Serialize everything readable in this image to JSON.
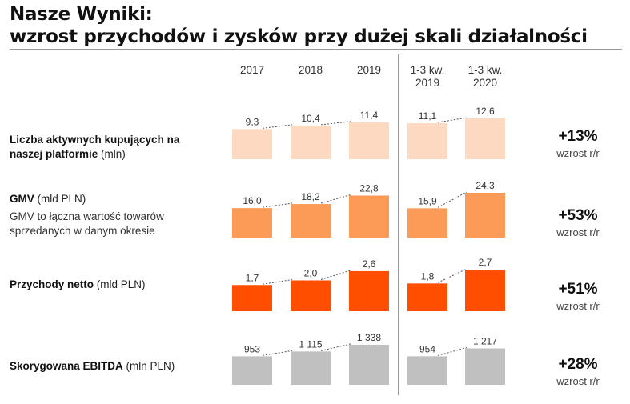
{
  "title_line1": "Nasze Wyniki:",
  "title_line2": "wzrost przychodów i zysków przy dużej skali działalności",
  "chart_data": {
    "type": "bar",
    "categories": [
      [
        "2017"
      ],
      [
        "2018"
      ],
      [
        "2019"
      ],
      [
        "1-3 kw.",
        "2019"
      ],
      [
        "1-3 kw.",
        "2020"
      ]
    ],
    "metrics": [
      {
        "name": "Liczba aktywnych kupujących na naszej platformie",
        "unit": "(mln)",
        "values": [
          9.3,
          10.4,
          11.4,
          11.1,
          12.6
        ],
        "value_labels": [
          "9,3",
          "10,4",
          "11,4",
          "11,1",
          "12,6"
        ],
        "color": "#fcd9c0",
        "growth": "+13%",
        "growth_label": "wzrost r/r"
      },
      {
        "name": "GMV",
        "unit": "(mld PLN)",
        "description": "GMV to łączna wartość towarów sprzedanych w danym okresie",
        "values": [
          16.0,
          18.2,
          22.8,
          15.9,
          24.3
        ],
        "value_labels": [
          "16,0",
          "18,2",
          "22,8",
          "15,9",
          "24,3"
        ],
        "color": "#fb9b57",
        "growth": "+53%",
        "growth_label": "wzrost r/r"
      },
      {
        "name": "Przychody netto",
        "unit": "(mld PLN)",
        "values": [
          1.7,
          2.0,
          2.6,
          1.8,
          2.7
        ],
        "value_labels": [
          "1,7",
          "2,0",
          "2,6",
          "1,8",
          "2,7"
        ],
        "color": "#ff4e00",
        "growth": "+51%",
        "growth_label": "wzrost r/r"
      },
      {
        "name": "Skorygowana EBITDA",
        "unit": "(mln PLN)",
        "values": [
          953,
          1115,
          1338,
          954,
          1217
        ],
        "value_labels": [
          "953",
          "1 115",
          "1 338",
          "954",
          "1 217"
        ],
        "color": "#c0c0c0",
        "growth": "+28%",
        "growth_label": "wzrost r/r"
      }
    ]
  }
}
